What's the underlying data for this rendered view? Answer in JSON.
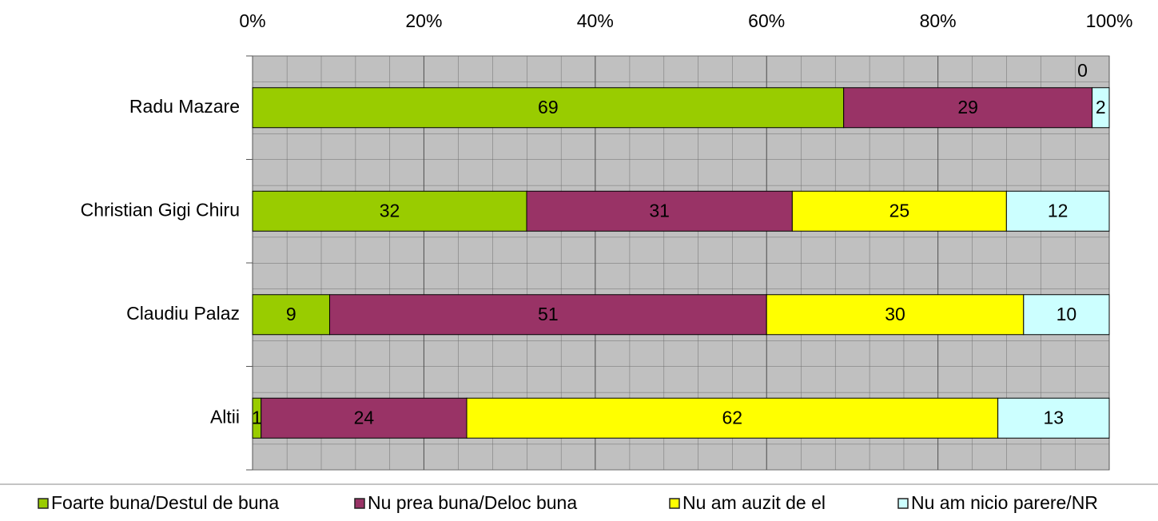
{
  "chart_data": {
    "type": "stacked_bar_horizontal",
    "categories": [
      "Radu Mazare",
      "Christian Gigi Chiru",
      "Claudiu Palaz",
      "Altii"
    ],
    "series": [
      {
        "name": "Foarte buna/Destul de buna",
        "color": "#99cc00",
        "values": [
          69,
          32,
          9,
          1
        ]
      },
      {
        "name": "Nu prea buna/Deloc buna",
        "color": "#993366",
        "values": [
          29,
          31,
          51,
          24
        ]
      },
      {
        "name": "Nu am auzit de el",
        "color": "#ffff00",
        "values": [
          0,
          25,
          30,
          62
        ]
      },
      {
        "name": "Nu am nicio parere/NR",
        "color": "#ccffff",
        "values": [
          2,
          12,
          10,
          13
        ]
      }
    ],
    "xlim": [
      0,
      100
    ],
    "xticks": [
      {
        "value": 0,
        "label": "0%"
      },
      {
        "value": 20,
        "label": "20%"
      },
      {
        "value": 40,
        "label": "40%"
      },
      {
        "value": 60,
        "label": "60%"
      },
      {
        "value": 80,
        "label": "80%"
      },
      {
        "value": 100,
        "label": "100%"
      }
    ],
    "grid": true,
    "legend": "bottom"
  }
}
